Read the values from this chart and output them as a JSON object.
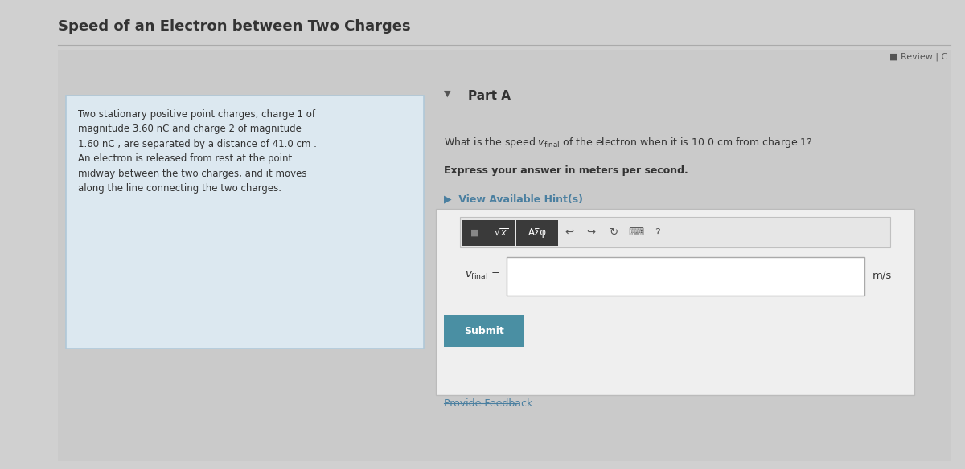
{
  "title": "Speed of an Electron between Two Charges",
  "bg_color": "#d0d0d0",
  "left_box_bg": "#dce8f0",
  "left_box_border": "#b0c8d8",
  "left_box_text": "Two stationary positive point charges, charge 1 of\nmagnitude 3.60 nC and charge 2 of magnitude\n1.60 nC , are separated by a distance of 41.0 cm .\nAn electron is released from rest at the point\nmidway between the two charges, and it moves\nalong the line connecting the two charges.",
  "part_a_label": "Part A",
  "bold_text": "Express your answer in meters per second.",
  "hint_text": "View Available Hint(s)",
  "unit_label": "m/s",
  "submit_label": "Submit",
  "submit_bg": "#4a8fa3",
  "submit_text_color": "#ffffff",
  "feedback_text": "Provide Feedback",
  "toolbar_bg": "#3a3a3a",
  "input_box_bg": "#ffffff",
  "outer_answer_box_bg": "#efefef",
  "outer_answer_box_border": "#bbbbbb",
  "text_dark": "#333333",
  "text_mid": "#555555",
  "text_link": "#4a7fa0"
}
